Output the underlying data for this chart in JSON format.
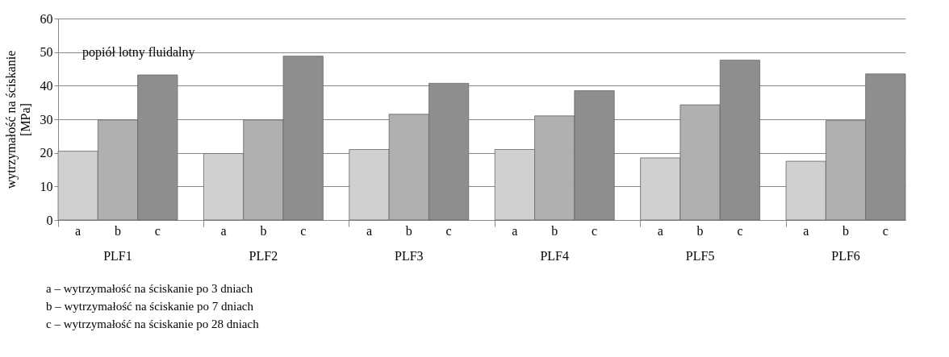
{
  "chart_data": {
    "type": "bar",
    "ylabel": "wytrzymałość na ściskanie [MPa]",
    "categories": [
      "PLF1",
      "PLF2",
      "PLF3",
      "PLF4",
      "PLF5",
      "PLF6"
    ],
    "series": [
      {
        "name": "a",
        "color": "#d0d0d0",
        "values": [
          20.5,
          19.8,
          21.0,
          21.0,
          18.5,
          17.5
        ]
      },
      {
        "name": "b",
        "color": "#b0b0b0",
        "values": [
          29.8,
          29.8,
          31.5,
          31.0,
          34.3,
          29.6
        ]
      },
      {
        "name": "c",
        "color": "#8e8e8e",
        "values": [
          43.2,
          48.8,
          40.7,
          38.5,
          47.6,
          43.5
        ]
      }
    ],
    "ylim": [
      0,
      60
    ],
    "yticks": [
      0,
      10,
      20,
      30,
      40,
      50,
      60
    ],
    "grid": "y",
    "legend": false,
    "annotations": [
      "popiół lotny fluidalny",
      "a – wytrzymałość na ściskanie po 3 dniach",
      "b – wytrzymałość na ściskanie po 7 dniach",
      "c – wytrzymałość na ściskanie po 28 dniach"
    ]
  }
}
